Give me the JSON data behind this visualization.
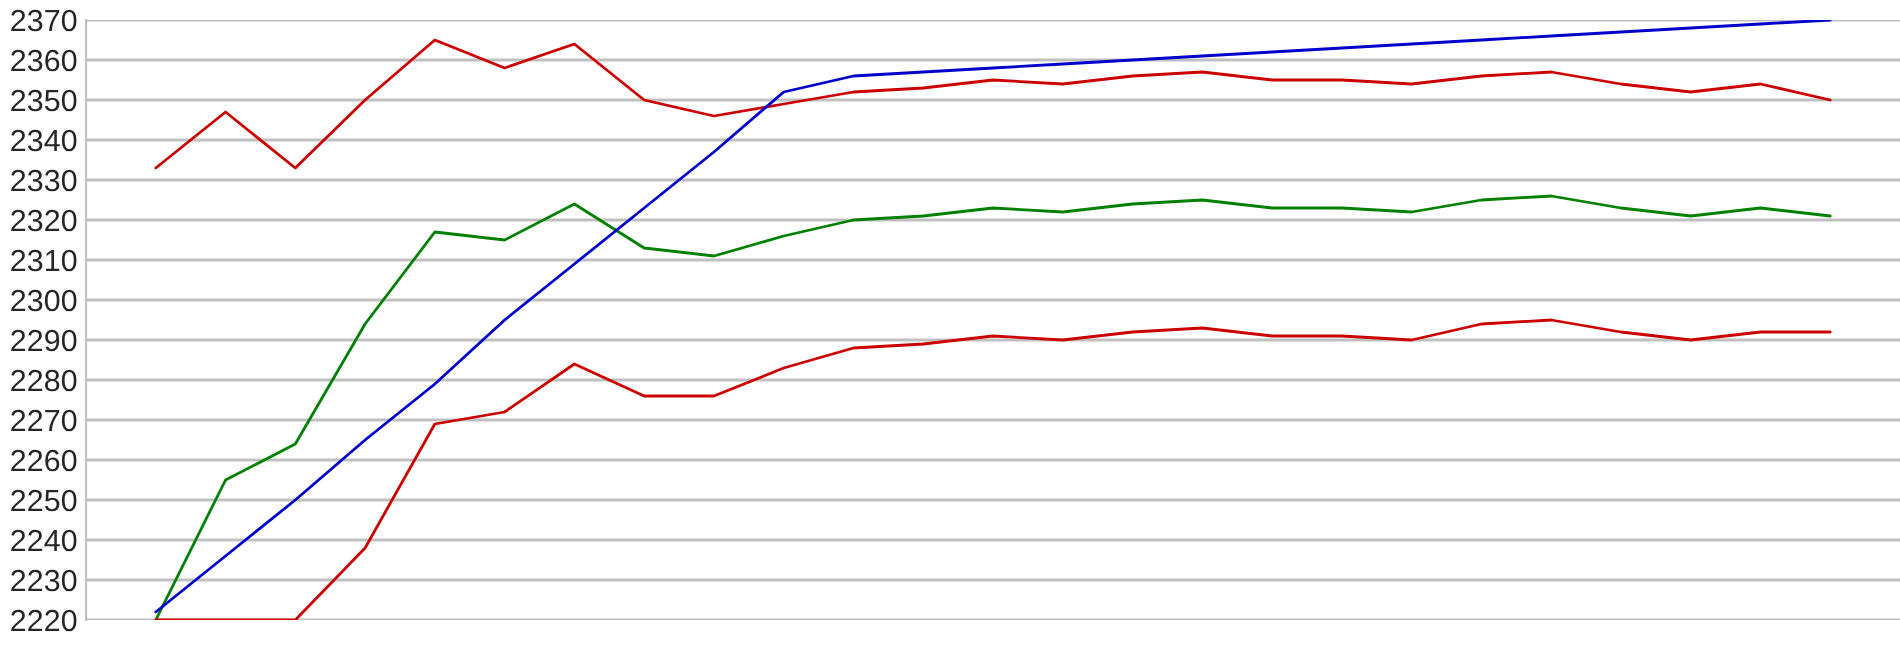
{
  "chart_data": {
    "type": "line",
    "categories": [
      null,
      null,
      null,
      null,
      null,
      null,
      null,
      null,
      null,
      null,
      null,
      null,
      null,
      null,
      null,
      null,
      null,
      null,
      null,
      null,
      null,
      null,
      null,
      null,
      null
    ],
    "ylim": [
      2220,
      2370
    ],
    "yticks": [
      2220,
      2230,
      2240,
      2250,
      2260,
      2270,
      2280,
      2290,
      2300,
      2310,
      2320,
      2330,
      2340,
      2350,
      2360,
      2370
    ],
    "grid": "y",
    "tick_labels": "y",
    "series": [
      {
        "color": "#cc0000",
        "values": [
          2333,
          2347,
          2333,
          2350,
          2365,
          2358,
          2364,
          2350,
          2346,
          2349,
          2352,
          2353,
          2355,
          2354,
          2356,
          2357,
          2355,
          2355,
          2354,
          2356,
          2357,
          2354,
          2352,
          2354,
          2350
        ]
      },
      {
        "color": "#008000",
        "values": [
          2220,
          2255,
          2264,
          2294,
          2317,
          2315,
          2324,
          2313,
          2311,
          2316,
          2320,
          2321,
          2323,
          2322,
          2324,
          2325,
          2323,
          2323,
          2322,
          2325,
          2326,
          2323,
          2321,
          2323,
          2321
        ]
      },
      {
        "color": "#0000cc",
        "values": [
          2222,
          2236,
          2250,
          2265,
          2279,
          2295,
          2309,
          2323,
          2337,
          2352,
          2356,
          2357,
          2358,
          2359,
          2360,
          2361,
          2362,
          2363,
          2364,
          2365,
          2366,
          2367,
          2368,
          2369,
          2370
        ]
      },
      {
        "color": "#cc0000",
        "values": [
          2220,
          2220,
          2220,
          2238,
          2269,
          2272,
          2284,
          2276,
          2276,
          2283,
          2288,
          2289,
          2291,
          2290,
          2292,
          2293,
          2291,
          2291,
          2290,
          2294,
          2295,
          2292,
          2290,
          2292,
          2292
        ]
      }
    ]
  }
}
